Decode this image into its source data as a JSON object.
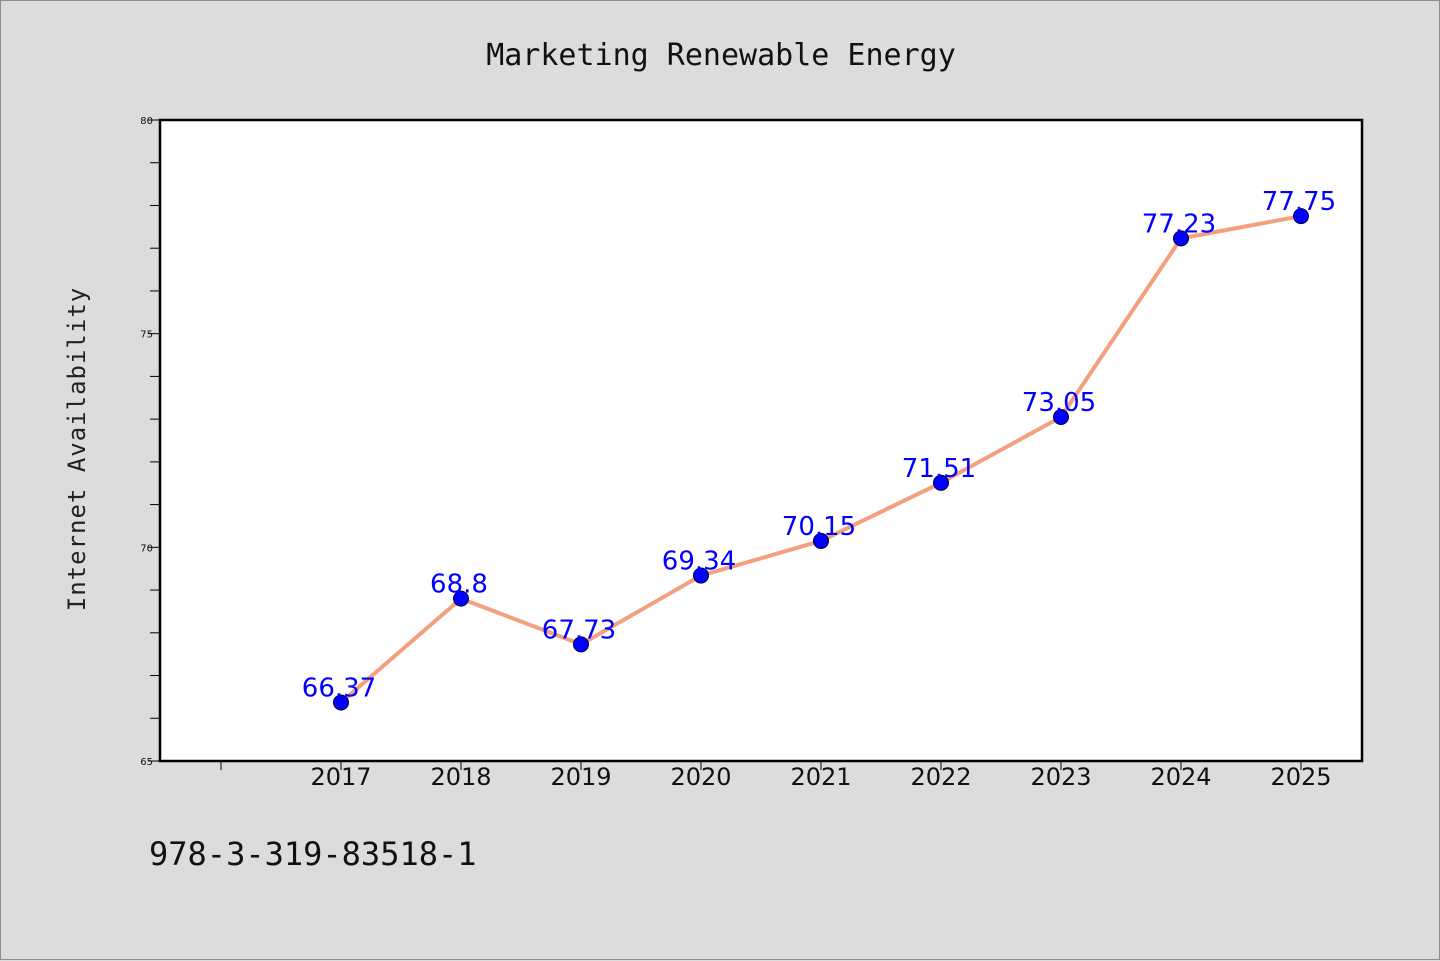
{
  "chart_data": {
    "type": "line",
    "title": "Marketing Renewable Energy",
    "xlabel": "",
    "ylabel": "Internet Availability",
    "categories": [
      "2017",
      "2018",
      "2019",
      "2020",
      "2021",
      "2022",
      "2023",
      "2024",
      "2025"
    ],
    "series": [
      {
        "values": [
          66.37,
          68.8,
          67.73,
          69.34,
          70.15,
          71.51,
          73.05,
          77.23,
          77.75
        ],
        "data_labels": [
          "66.37",
          "68.8",
          "67.73",
          "69.34",
          "70.15",
          "71.51",
          "73.05",
          "77.23",
          "77.75"
        ]
      }
    ],
    "ylim": [
      65,
      80
    ],
    "yticks": [
      "65",
      "70",
      "75",
      "80"
    ],
    "grid": false,
    "legend": "none",
    "colors": {
      "line": "#f4a07e",
      "marker": "#0000ff",
      "label": "#0000ff"
    }
  },
  "footer": {
    "isbn": "978-3-319-83518-1"
  }
}
